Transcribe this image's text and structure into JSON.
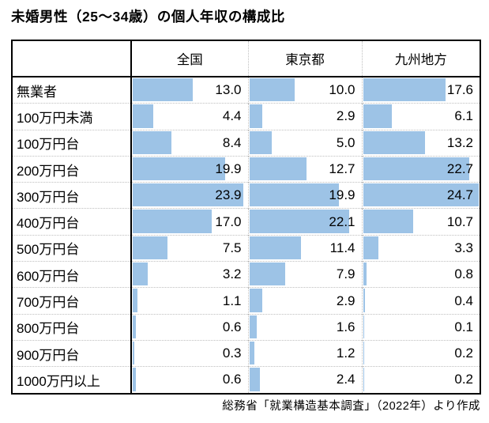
{
  "title": "未婚男性（25～34歳）の個人年収の構成比",
  "source_note": "総務省「就業構造基本調査」（2022年）より作成",
  "colors": {
    "bar": "#9DC3E6",
    "grid_dotted": "#BFBFBF",
    "border": "#000000",
    "text": "#000000",
    "background": "#FFFFFF"
  },
  "chart_data": {
    "type": "bar",
    "orientation": "horizontal",
    "render_style": "in-table bars with right-aligned value labels",
    "title": "未婚男性（25～34歳）の個人年収の構成比",
    "categories": [
      "無業者",
      "100万円未満",
      "100万円台",
      "200万円台",
      "300万円台",
      "400万円台",
      "500万円台",
      "600万円台",
      "700万円台",
      "800万円台",
      "900万円台",
      "1000万円以上"
    ],
    "series": [
      {
        "name": "全国",
        "values": [
          13.0,
          4.4,
          8.4,
          19.9,
          23.9,
          17.0,
          7.5,
          3.2,
          1.1,
          0.6,
          0.3,
          0.6
        ]
      },
      {
        "name": "東京都",
        "values": [
          10.0,
          2.9,
          5.0,
          12.7,
          19.9,
          22.1,
          11.4,
          7.9,
          2.9,
          1.6,
          1.2,
          2.4
        ]
      },
      {
        "name": "九州地方",
        "values": [
          17.6,
          6.1,
          13.2,
          22.7,
          24.7,
          10.7,
          3.3,
          0.8,
          0.4,
          0.1,
          0.2,
          0.2
        ]
      }
    ],
    "unit": "%",
    "value_format": "one_decimal",
    "xlim": [
      0,
      25
    ],
    "grid": false,
    "legend_position": "column-headers",
    "annotation": "総務省「就業構造基本調査」（2022年）より作成"
  }
}
